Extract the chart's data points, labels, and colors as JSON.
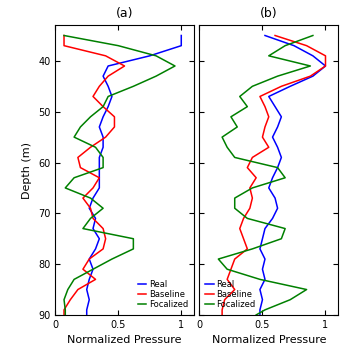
{
  "panel_a": {
    "title": "(a)",
    "depth": [
      35,
      37,
      39,
      41,
      43,
      45,
      47,
      49,
      51,
      53,
      55,
      57,
      59,
      61,
      63,
      65,
      67,
      69,
      71,
      73,
      75,
      77,
      79,
      81,
      83,
      85,
      87,
      89,
      90
    ],
    "real": [
      1.0,
      1.0,
      0.75,
      0.42,
      0.38,
      0.42,
      0.45,
      0.42,
      0.38,
      0.35,
      0.38,
      0.38,
      0.35,
      0.35,
      0.35,
      0.35,
      0.3,
      0.27,
      0.32,
      0.3,
      0.35,
      0.32,
      0.27,
      0.3,
      0.27,
      0.25,
      0.27,
      0.25,
      0.25
    ],
    "baseline": [
      0.07,
      0.07,
      0.4,
      0.55,
      0.42,
      0.35,
      0.3,
      0.38,
      0.47,
      0.47,
      0.4,
      0.28,
      0.18,
      0.2,
      0.35,
      0.3,
      0.22,
      0.28,
      0.3,
      0.38,
      0.4,
      0.38,
      0.27,
      0.22,
      0.32,
      0.18,
      0.12,
      0.07,
      0.07
    ],
    "focalized": [
      0.07,
      0.5,
      0.8,
      0.95,
      0.8,
      0.62,
      0.42,
      0.38,
      0.28,
      0.2,
      0.15,
      0.32,
      0.38,
      0.38,
      0.15,
      0.08,
      0.28,
      0.38,
      0.28,
      0.22,
      0.62,
      0.62,
      0.45,
      0.3,
      0.15,
      0.1,
      0.07,
      0.08,
      0.08
    ],
    "xlabel": "Normalized Pressure",
    "ylabel": "Depth (m)",
    "xlim": [
      0,
      1.1
    ],
    "ylim": [
      90,
      33
    ]
  },
  "panel_b": {
    "title": "(b)",
    "depth": [
      35,
      37,
      39,
      41,
      43,
      45,
      47,
      49,
      51,
      53,
      55,
      57,
      59,
      61,
      63,
      65,
      67,
      69,
      71,
      73,
      75,
      77,
      79,
      81,
      83,
      85,
      87,
      89,
      90
    ],
    "real": [
      0.52,
      0.75,
      0.9,
      1.0,
      0.9,
      0.72,
      0.55,
      0.6,
      0.65,
      0.62,
      0.58,
      0.62,
      0.65,
      0.62,
      0.58,
      0.55,
      0.6,
      0.62,
      0.58,
      0.52,
      0.5,
      0.48,
      0.52,
      0.5,
      0.52,
      0.48,
      0.5,
      0.48,
      0.48
    ],
    "baseline": [
      0.6,
      0.85,
      1.0,
      1.0,
      0.88,
      0.65,
      0.48,
      0.52,
      0.55,
      0.52,
      0.5,
      0.55,
      0.42,
      0.38,
      0.45,
      0.4,
      0.42,
      0.4,
      0.35,
      0.32,
      0.35,
      0.38,
      0.28,
      0.25,
      0.22,
      0.28,
      0.2,
      0.18,
      0.18
    ],
    "focalized": [
      0.9,
      0.68,
      0.55,
      0.88,
      0.62,
      0.42,
      0.32,
      0.38,
      0.25,
      0.3,
      0.18,
      0.22,
      0.28,
      0.62,
      0.68,
      0.42,
      0.28,
      0.28,
      0.38,
      0.68,
      0.65,
      0.42,
      0.15,
      0.22,
      0.48,
      0.85,
      0.72,
      0.52,
      0.45
    ],
    "xlabel": "Normalized Pressure",
    "ylabel": "Depth (m)",
    "xlim": [
      0,
      1.1
    ],
    "ylim": [
      90,
      33
    ]
  },
  "colors": {
    "real": "blue",
    "baseline": "red",
    "focalized": "green"
  },
  "legend_labels": [
    "Real",
    "Baseline",
    "Focalized"
  ],
  "figsize": [
    3.45,
    3.62
  ],
  "dpi": 100,
  "lw": 1.1,
  "legend_fontsize": 6,
  "tick_fontsize": 7,
  "label_fontsize": 8,
  "title_fontsize": 9,
  "yticks": [
    40,
    50,
    60,
    70,
    80,
    90
  ],
  "xticks": [
    0,
    0.5,
    1
  ]
}
